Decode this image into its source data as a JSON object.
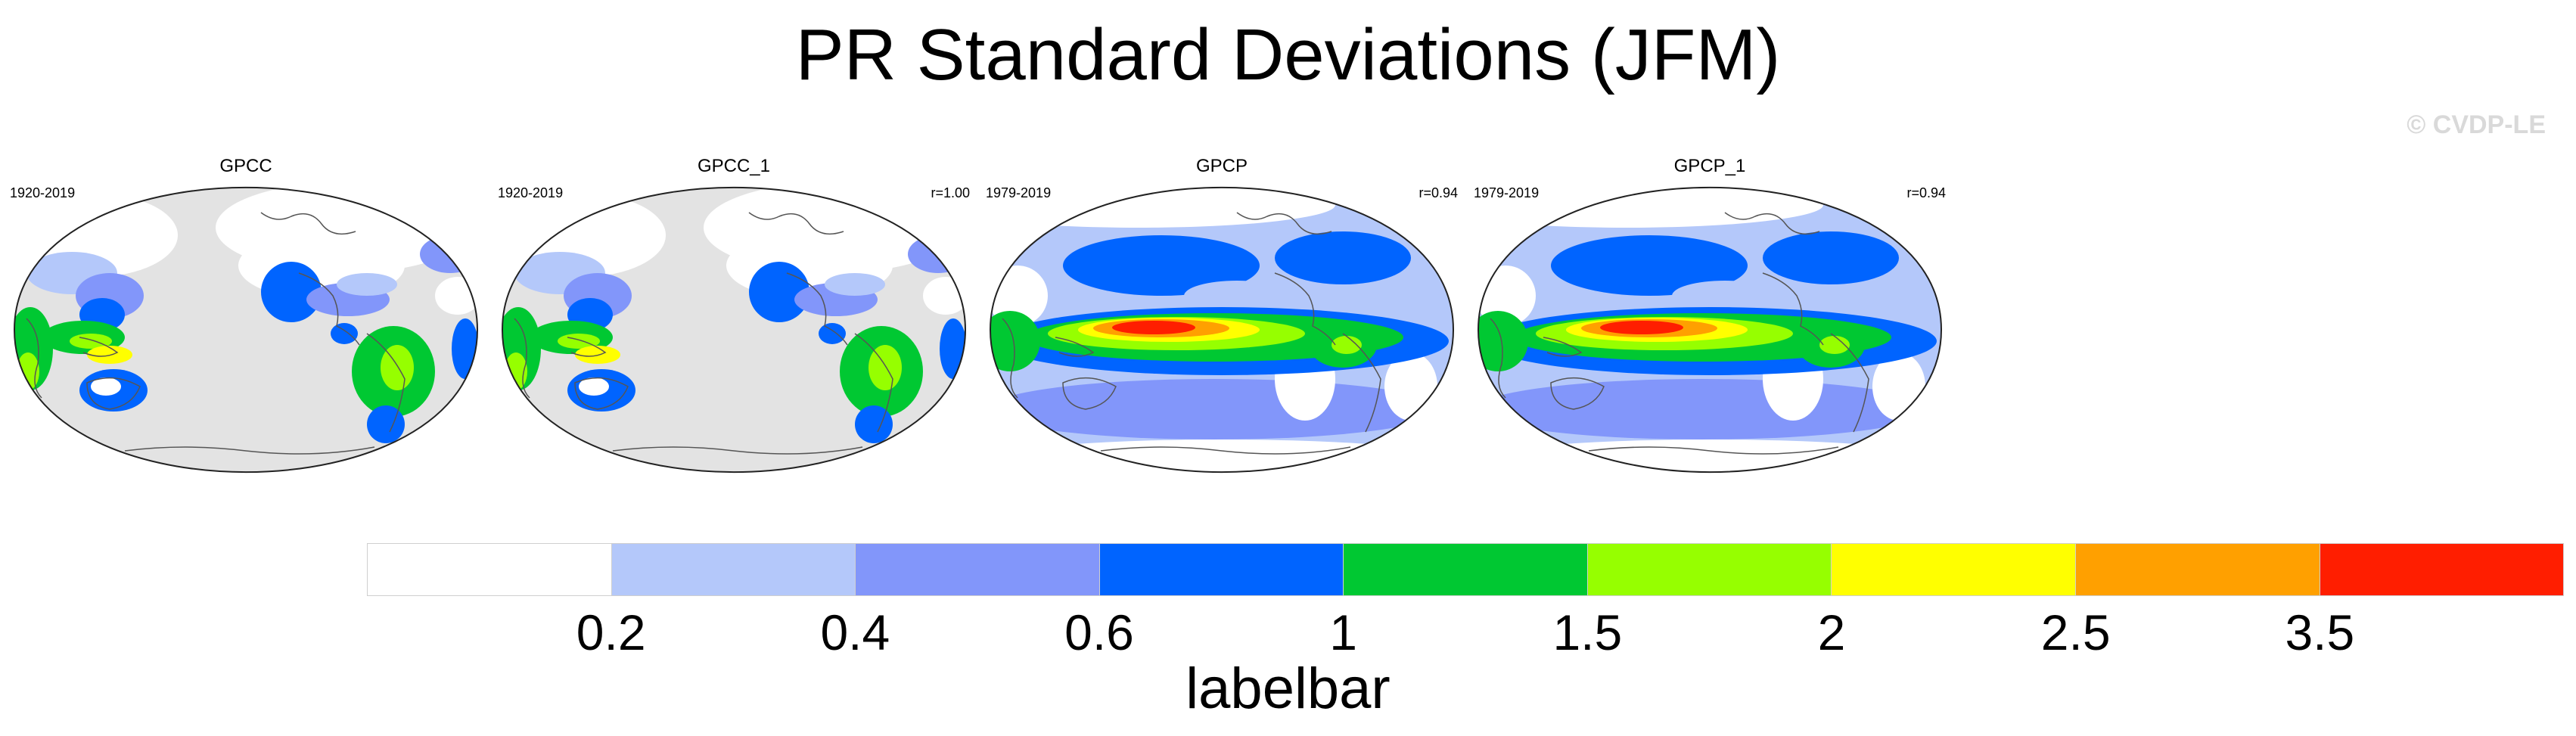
{
  "title": "PR Standard Deviations (JFM)",
  "credit": "© CVDP-LE",
  "panels": [
    {
      "name": "GPCC",
      "years": "1920-2019",
      "correlation": "",
      "dataset": "land"
    },
    {
      "name": "GPCC_1",
      "years": "1920-2019",
      "correlation": "r=1.00",
      "dataset": "land"
    },
    {
      "name": "GPCP",
      "years": "1979-2019",
      "correlation": "r=0.94",
      "dataset": "global"
    },
    {
      "name": "GPCP_1",
      "years": "1979-2019",
      "correlation": "r=0.94",
      "dataset": "global"
    }
  ],
  "labelbar": {
    "title": "labelbar",
    "colors": [
      "#ffffff",
      "#b4c8fa",
      "#8296fa",
      "#0064ff",
      "#00c832",
      "#96ff00",
      "#ffff00",
      "#ffa000",
      "#ff1e00"
    ],
    "tick_labels": [
      "0.2",
      "0.4",
      "0.6",
      "1",
      "1.5",
      "2",
      "2.5",
      "3.5"
    ]
  },
  "map_colors": {
    "land_missing": "#e3e3e3",
    "coast": "#555555"
  }
}
